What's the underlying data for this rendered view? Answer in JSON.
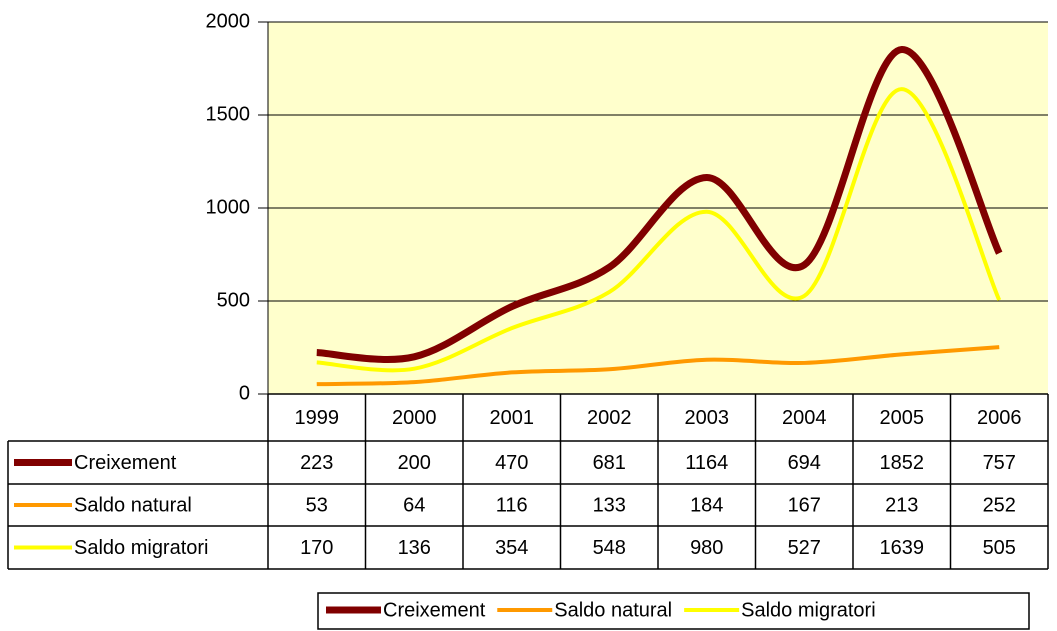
{
  "chart_data": {
    "type": "line",
    "categories": [
      "1999",
      "2000",
      "2001",
      "2002",
      "2003",
      "2004",
      "2005",
      "2006"
    ],
    "series": [
      {
        "name": "Creixement",
        "color": "#800000",
        "values": [
          223,
          200,
          470,
          681,
          1164,
          694,
          1852,
          757
        ]
      },
      {
        "name": "Saldo natural",
        "color": "#ff9900",
        "values": [
          53,
          64,
          116,
          133,
          184,
          167,
          213,
          252
        ]
      },
      {
        "name": "Saldo migratori",
        "color": "#ffff00",
        "values": [
          170,
          136,
          354,
          548,
          980,
          527,
          1639,
          505
        ]
      }
    ],
    "ylim": [
      0,
      2000
    ],
    "yticks": [
      0,
      500,
      1000,
      1500,
      2000
    ],
    "grid": true,
    "smooth": true,
    "legend": "bottom",
    "plot_background": "#ffffcc"
  }
}
